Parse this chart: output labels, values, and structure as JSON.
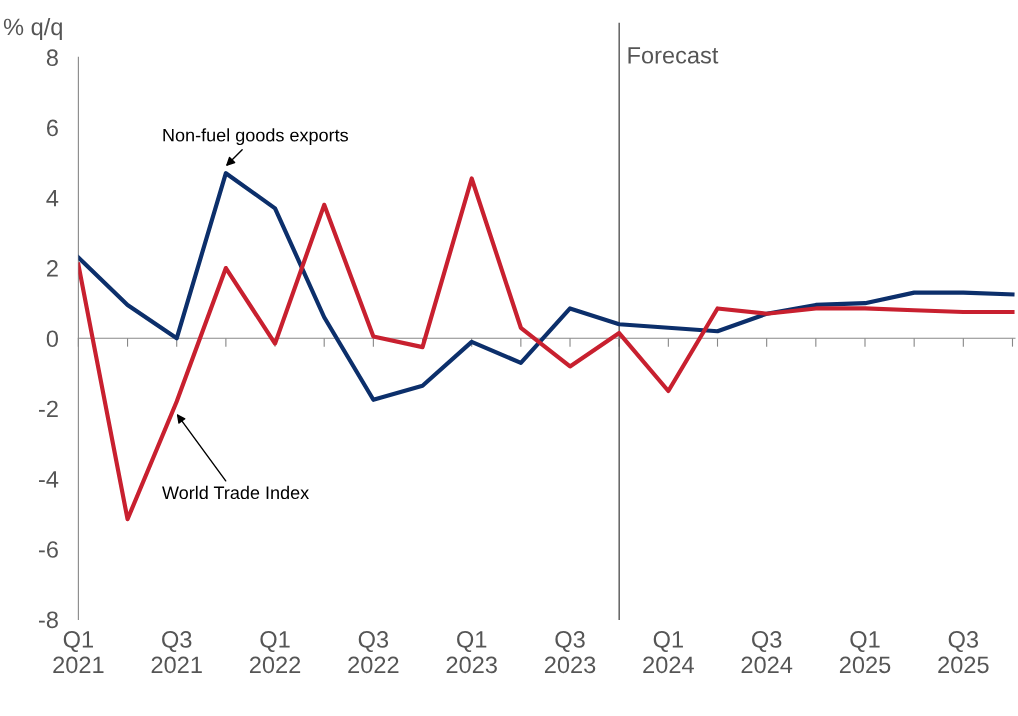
{
  "chart_data": {
    "type": "line",
    "ylabel": "% q/q",
    "categories": [
      "Q1\n2021",
      null,
      "Q3\n2021",
      null,
      "Q1\n2022",
      null,
      "Q3\n2022",
      null,
      "Q1\n2023",
      null,
      "Q3\n2023",
      null,
      "Q1\n2024",
      null,
      "Q3\n2024",
      null,
      "Q1\n2025",
      null,
      "Q3\n2025",
      null
    ],
    "series": [
      {
        "name": "Non-fuel goods exports",
        "color": "#0c2f6b",
        "values": [
          2.3,
          0.95,
          0.0,
          4.7,
          3.7,
          0.6,
          -1.75,
          -1.35,
          -0.1,
          -0.7,
          0.85,
          0.4,
          0.3,
          0.2,
          0.7,
          0.95,
          1.0,
          1.3,
          1.3,
          1.25
        ]
      },
      {
        "name": "World Trade Index",
        "color": "#c8202f",
        "values": [
          2.1,
          -5.15,
          -1.8,
          2.0,
          -0.15,
          3.8,
          0.05,
          -0.25,
          4.55,
          0.3,
          -0.8,
          0.15,
          -1.5,
          0.85,
          0.7,
          0.85,
          0.85,
          0.8,
          0.75,
          0.75
        ]
      }
    ],
    "ylim": [
      -8,
      8
    ],
    "yticks": [
      -8,
      -6,
      -4,
      -2,
      0,
      2,
      4,
      6,
      8
    ],
    "annotations": [
      "Forecast"
    ],
    "grid": false,
    "legend": false,
    "marker": "none",
    "line_style": "solid"
  }
}
